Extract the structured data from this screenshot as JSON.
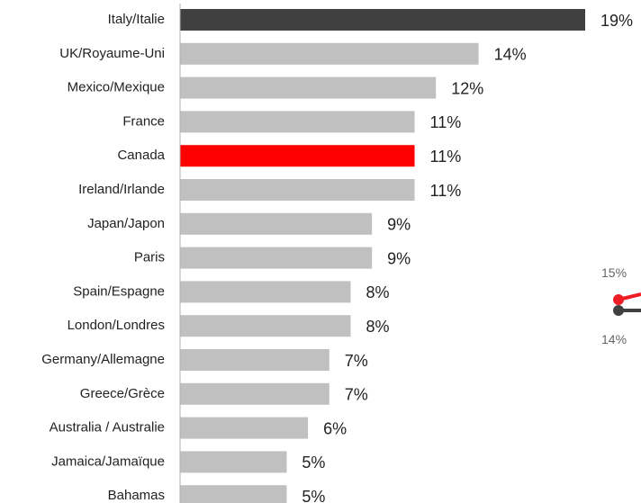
{
  "chart_data": {
    "type": "bar",
    "orientation": "horizontal",
    "categories": [
      "Italy/Italie",
      "UK/Royaume-Uni",
      "Mexico/Mexique",
      "France",
      "Canada",
      "Ireland/Irlande",
      "Japan/Japon",
      "Paris",
      "Spain/Espagne",
      "London/Londres",
      "Germany/Allemagne",
      "Greece/Grèce",
      "Australia / Australie",
      "Jamaica/Jamaïque",
      "Bahamas"
    ],
    "values": [
      19,
      14,
      12,
      11,
      11,
      11,
      9,
      9,
      8,
      8,
      7,
      7,
      6,
      5,
      5
    ],
    "value_labels": [
      "19%",
      "14%",
      "12%",
      "11%",
      "11%",
      "11%",
      "9%",
      "9%",
      "8%",
      "8%",
      "7%",
      "7%",
      "6%",
      "5%",
      "5%"
    ],
    "unit": "%",
    "xlim": [
      0,
      20.6
    ],
    "grid": false,
    "colors": {
      "default": "#c0c0c0",
      "highlight_top": "#404040",
      "highlight_canada": "#ff0000",
      "axis": "#b0b0b0"
    },
    "highlight": {
      "Italy/Italie": "highlight_top",
      "Canada": "highlight_canada"
    }
  },
  "side_legend": {
    "upper_value": "15%",
    "lower_value": "14%",
    "upper_color": "#ee1c25",
    "lower_color": "#404040"
  }
}
